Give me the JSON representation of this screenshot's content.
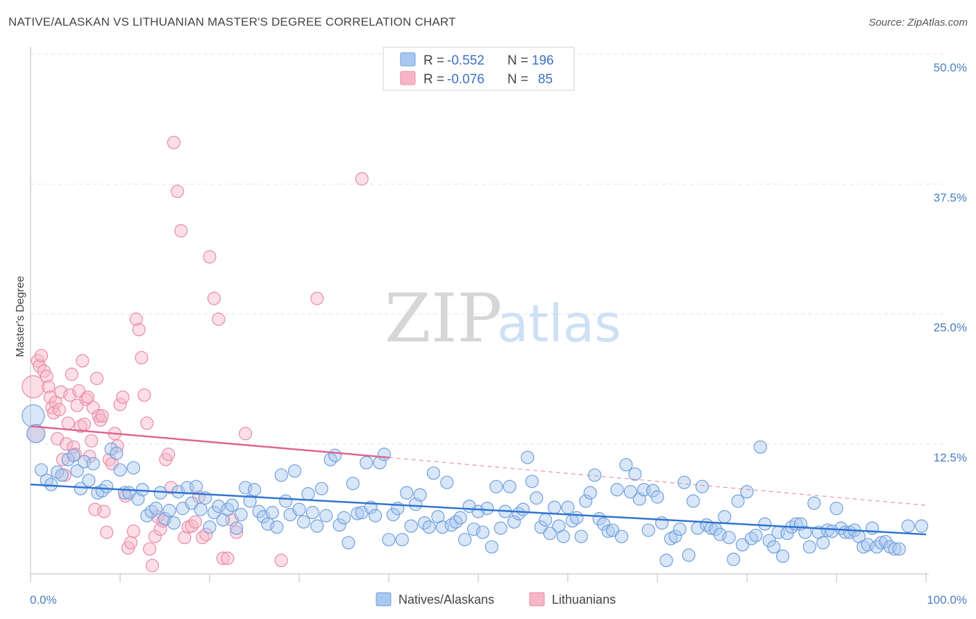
{
  "title": "NATIVE/ALASKAN VS LITHUANIAN MASTER'S DEGREE CORRELATION CHART",
  "source": "Source: ZipAtlas.com",
  "watermark": {
    "zip": "ZIP",
    "atlas": "atlas"
  },
  "colors": {
    "blue_fill": "#a9c8f0",
    "blue_stroke": "#6f9fdb",
    "blue_line": "#2f74d0",
    "pink_fill": "#f6b6c8",
    "pink_stroke": "#e98aa9",
    "pink_line": "#e0648c",
    "tick_color": "#4a7cc4"
  },
  "legend": {
    "rows": [
      {
        "r_label": "R = ",
        "r_value": "-0.552",
        "n_label": "N = ",
        "n_value": "196"
      },
      {
        "r_label": "R = ",
        "r_value": "-0.076",
        "n_label": "N = ",
        "n_value": "85"
      }
    ]
  },
  "bottom_legend": [
    "Natives/Alaskans",
    "Lithuanians"
  ],
  "chart_data": {
    "type": "scatter",
    "ylabel": "Master's Degree",
    "xlim": [
      0,
      100
    ],
    "ylim": [
      0,
      50
    ],
    "y_ticks": [
      12.5,
      25.0,
      37.5,
      50.0
    ],
    "y_tick_labels": [
      "12.5%",
      "25.0%",
      "37.5%",
      "50.0%"
    ],
    "x_tick_labels": [
      "0.0%",
      "100.0%"
    ],
    "grid": true,
    "series": [
      {
        "name": "Natives/Alaskans",
        "trend": {
          "x": [
            0,
            100
          ],
          "y": [
            8.6,
            3.8
          ]
        },
        "points": [
          [
            0.3,
            15.2
          ],
          [
            0.6,
            13.5
          ],
          [
            1.2,
            10.0
          ],
          [
            1.8,
            9.0
          ],
          [
            2.3,
            8.6
          ],
          [
            3.0,
            9.8
          ],
          [
            3.5,
            9.5
          ],
          [
            4.2,
            11.0
          ],
          [
            4.8,
            11.4
          ],
          [
            5.2,
            9.9
          ],
          [
            5.6,
            8.2
          ],
          [
            6.0,
            10.8
          ],
          [
            6.5,
            9.0
          ],
          [
            7.0,
            10.6
          ],
          [
            7.5,
            7.8
          ],
          [
            8.0,
            8.0
          ],
          [
            8.5,
            8.4
          ],
          [
            9.0,
            12.0
          ],
          [
            9.6,
            11.6
          ],
          [
            10.0,
            10.0
          ],
          [
            10.5,
            7.8
          ],
          [
            11.0,
            7.8
          ],
          [
            11.5,
            10.2
          ],
          [
            12.0,
            7.2
          ],
          [
            12.5,
            8.1
          ],
          [
            13.0,
            5.6
          ],
          [
            13.5,
            6.0
          ],
          [
            14.0,
            6.3
          ],
          [
            14.5,
            7.8
          ],
          [
            15.0,
            5.3
          ],
          [
            15.5,
            6.1
          ],
          [
            16.0,
            4.9
          ],
          [
            16.5,
            7.9
          ],
          [
            17.0,
            6.3
          ],
          [
            17.5,
            8.3
          ],
          [
            18.0,
            6.8
          ],
          [
            18.5,
            8.4
          ],
          [
            19.0,
            6.2
          ],
          [
            19.5,
            7.3
          ],
          [
            20.0,
            4.5
          ],
          [
            20.5,
            5.9
          ],
          [
            21.0,
            6.5
          ],
          [
            21.5,
            5.2
          ],
          [
            22.0,
            6.2
          ],
          [
            22.5,
            6.6
          ],
          [
            23.0,
            4.4
          ],
          [
            23.5,
            5.7
          ],
          [
            24.0,
            8.3
          ],
          [
            24.5,
            7.0
          ],
          [
            25.0,
            8.1
          ],
          [
            25.5,
            6.0
          ],
          [
            26.0,
            5.5
          ],
          [
            26.5,
            4.8
          ],
          [
            27.0,
            5.9
          ],
          [
            27.5,
            4.5
          ],
          [
            28.0,
            9.5
          ],
          [
            28.5,
            7.0
          ],
          [
            29.0,
            5.7
          ],
          [
            29.5,
            9.9
          ],
          [
            30.0,
            6.2
          ],
          [
            30.5,
            5.0
          ],
          [
            31.0,
            7.7
          ],
          [
            31.5,
            5.9
          ],
          [
            32.0,
            4.6
          ],
          [
            32.5,
            8.2
          ],
          [
            33.0,
            5.6
          ],
          [
            33.5,
            11.0
          ],
          [
            34.0,
            11.4
          ],
          [
            34.5,
            4.7
          ],
          [
            35.0,
            5.4
          ],
          [
            35.5,
            3.0
          ],
          [
            36.0,
            8.7
          ],
          [
            36.5,
            5.8
          ],
          [
            37.0,
            5.9
          ],
          [
            37.5,
            10.7
          ],
          [
            38.0,
            6.4
          ],
          [
            38.5,
            5.6
          ],
          [
            39.0,
            10.7
          ],
          [
            39.5,
            11.5
          ],
          [
            40.0,
            3.3
          ],
          [
            40.5,
            5.7
          ],
          [
            41.0,
            6.3
          ],
          [
            41.5,
            3.3
          ],
          [
            42.0,
            7.8
          ],
          [
            42.5,
            4.6
          ],
          [
            43.0,
            6.7
          ],
          [
            43.5,
            7.6
          ],
          [
            44.0,
            4.9
          ],
          [
            44.5,
            4.5
          ],
          [
            45.0,
            9.7
          ],
          [
            45.5,
            5.5
          ],
          [
            46.0,
            4.5
          ],
          [
            46.5,
            8.8
          ],
          [
            47.0,
            4.7
          ],
          [
            47.5,
            5.0
          ],
          [
            48.0,
            5.4
          ],
          [
            48.5,
            3.3
          ],
          [
            49.0,
            6.5
          ],
          [
            49.5,
            4.3
          ],
          [
            50.0,
            6.0
          ],
          [
            50.5,
            4.0
          ],
          [
            51.0,
            6.3
          ],
          [
            51.5,
            2.6
          ],
          [
            52.0,
            8.4
          ],
          [
            52.5,
            4.4
          ],
          [
            53.0,
            6.0
          ],
          [
            53.5,
            8.4
          ],
          [
            54.0,
            5.0
          ],
          [
            54.5,
            5.8
          ],
          [
            55.0,
            6.2
          ],
          [
            55.5,
            11.2
          ],
          [
            56.0,
            8.9
          ],
          [
            56.5,
            7.3
          ],
          [
            57.0,
            4.5
          ],
          [
            57.5,
            5.2
          ],
          [
            58.0,
            3.9
          ],
          [
            58.5,
            6.4
          ],
          [
            59.0,
            4.6
          ],
          [
            59.5,
            3.6
          ],
          [
            60.0,
            6.4
          ],
          [
            60.5,
            5.1
          ],
          [
            61.0,
            5.4
          ],
          [
            61.5,
            3.6
          ],
          [
            62.0,
            7.0
          ],
          [
            62.5,
            7.8
          ],
          [
            63.0,
            9.5
          ],
          [
            63.5,
            5.3
          ],
          [
            64.0,
            4.8
          ],
          [
            64.5,
            4.1
          ],
          [
            65.0,
            4.2
          ],
          [
            65.5,
            8.1
          ],
          [
            66.0,
            3.6
          ],
          [
            66.5,
            10.5
          ],
          [
            67.0,
            7.9
          ],
          [
            67.5,
            9.6
          ],
          [
            68.0,
            7.2
          ],
          [
            68.5,
            8.1
          ],
          [
            69.0,
            4.2
          ],
          [
            69.5,
            8.0
          ],
          [
            70.0,
            7.4
          ],
          [
            70.5,
            4.9
          ],
          [
            71.0,
            1.3
          ],
          [
            71.5,
            3.4
          ],
          [
            72.0,
            3.6
          ],
          [
            72.5,
            4.3
          ],
          [
            73.0,
            8.8
          ],
          [
            73.5,
            1.8
          ],
          [
            74.0,
            7.0
          ],
          [
            74.5,
            4.4
          ],
          [
            75.0,
            8.4
          ],
          [
            75.5,
            4.7
          ],
          [
            76.0,
            4.4
          ],
          [
            76.5,
            4.3
          ],
          [
            77.0,
            3.8
          ],
          [
            77.5,
            5.5
          ],
          [
            78.0,
            3.5
          ],
          [
            78.5,
            1.4
          ],
          [
            79.0,
            7.0
          ],
          [
            79.5,
            2.8
          ],
          [
            80.0,
            7.9
          ],
          [
            80.5,
            3.4
          ],
          [
            81.0,
            3.7
          ],
          [
            81.5,
            12.2
          ],
          [
            82.0,
            4.8
          ],
          [
            82.5,
            3.2
          ],
          [
            83.0,
            2.6
          ],
          [
            83.5,
            4.0
          ],
          [
            84.0,
            1.7
          ],
          [
            84.5,
            3.9
          ],
          [
            85.0,
            4.5
          ],
          [
            85.5,
            4.8
          ],
          [
            86.0,
            4.8
          ],
          [
            86.5,
            4.0
          ],
          [
            87.0,
            2.6
          ],
          [
            87.5,
            6.8
          ],
          [
            88.0,
            4.0
          ],
          [
            88.5,
            3.0
          ],
          [
            89.0,
            4.2
          ],
          [
            89.5,
            4.1
          ],
          [
            90.0,
            6.3
          ],
          [
            90.5,
            4.4
          ],
          [
            91.0,
            4.0
          ],
          [
            91.5,
            4.0
          ],
          [
            92.0,
            4.2
          ],
          [
            92.5,
            3.6
          ],
          [
            93.0,
            2.6
          ],
          [
            93.5,
            2.8
          ],
          [
            94.0,
            4.4
          ],
          [
            94.5,
            2.6
          ],
          [
            95.0,
            3.0
          ],
          [
            95.5,
            3.1
          ],
          [
            96.0,
            2.6
          ],
          [
            96.5,
            2.4
          ],
          [
            97.0,
            2.4
          ],
          [
            98.0,
            4.6
          ],
          [
            99.5,
            4.6
          ]
        ]
      },
      {
        "name": "Lithuanians",
        "trend": {
          "x": [
            0,
            40
          ],
          "y": [
            14.2,
            11.2
          ]
        },
        "trend_extension": {
          "x": [
            40,
            100
          ],
          "y": [
            11.2,
            6.6
          ]
        },
        "points": [
          [
            0.3,
            18.0
          ],
          [
            0.6,
            13.5
          ],
          [
            0.8,
            20.5
          ],
          [
            1.0,
            20.0
          ],
          [
            1.2,
            21.0
          ],
          [
            1.5,
            19.5
          ],
          [
            1.8,
            19.0
          ],
          [
            2.0,
            18.0
          ],
          [
            2.2,
            17.0
          ],
          [
            2.4,
            16.0
          ],
          [
            2.6,
            15.5
          ],
          [
            2.8,
            16.5
          ],
          [
            3.0,
            13.0
          ],
          [
            3.2,
            15.8
          ],
          [
            3.4,
            17.5
          ],
          [
            3.6,
            11.0
          ],
          [
            3.8,
            9.5
          ],
          [
            4.0,
            12.5
          ],
          [
            4.2,
            14.5
          ],
          [
            4.4,
            17.2
          ],
          [
            4.6,
            19.2
          ],
          [
            4.8,
            12.2
          ],
          [
            5.0,
            11.5
          ],
          [
            5.2,
            16.2
          ],
          [
            5.4,
            17.6
          ],
          [
            5.6,
            14.2
          ],
          [
            5.8,
            20.5
          ],
          [
            6.0,
            14.4
          ],
          [
            6.2,
            16.8
          ],
          [
            6.4,
            17.0
          ],
          [
            6.6,
            11.3
          ],
          [
            6.8,
            12.8
          ],
          [
            7.0,
            16.0
          ],
          [
            7.2,
            6.2
          ],
          [
            7.4,
            18.8
          ],
          [
            7.6,
            15.2
          ],
          [
            7.8,
            14.8
          ],
          [
            8.0,
            15.2
          ],
          [
            8.2,
            6.0
          ],
          [
            8.5,
            4.0
          ],
          [
            8.8,
            11.0
          ],
          [
            9.1,
            10.6
          ],
          [
            9.4,
            13.5
          ],
          [
            9.7,
            12.3
          ],
          [
            10.0,
            16.3
          ],
          [
            10.3,
            17.0
          ],
          [
            10.6,
            7.5
          ],
          [
            10.9,
            2.5
          ],
          [
            11.2,
            3.0
          ],
          [
            11.5,
            4.1
          ],
          [
            11.8,
            24.5
          ],
          [
            12.1,
            23.5
          ],
          [
            12.4,
            20.8
          ],
          [
            12.7,
            17.2
          ],
          [
            13.0,
            14.5
          ],
          [
            13.3,
            2.4
          ],
          [
            13.6,
            0.8
          ],
          [
            13.9,
            3.6
          ],
          [
            14.2,
            5.5
          ],
          [
            14.5,
            4.3
          ],
          [
            14.8,
            5.1
          ],
          [
            15.1,
            11.0
          ],
          [
            15.4,
            11.5
          ],
          [
            15.7,
            8.3
          ],
          [
            16.0,
            41.5
          ],
          [
            16.4,
            36.8
          ],
          [
            16.8,
            33.0
          ],
          [
            17.2,
            3.5
          ],
          [
            17.6,
            4.5
          ],
          [
            18.0,
            4.6
          ],
          [
            18.4,
            5.0
          ],
          [
            18.8,
            7.4
          ],
          [
            19.2,
            3.5
          ],
          [
            19.6,
            3.8
          ],
          [
            20.0,
            30.5
          ],
          [
            20.5,
            26.5
          ],
          [
            21.0,
            24.5
          ],
          [
            21.5,
            1.5
          ],
          [
            22.0,
            1.5
          ],
          [
            22.5,
            5.2
          ],
          [
            23.0,
            4.0
          ],
          [
            24.0,
            13.5
          ],
          [
            28.0,
            1.3
          ],
          [
            32.0,
            26.5
          ],
          [
            37.0,
            38.0
          ]
        ]
      }
    ]
  }
}
